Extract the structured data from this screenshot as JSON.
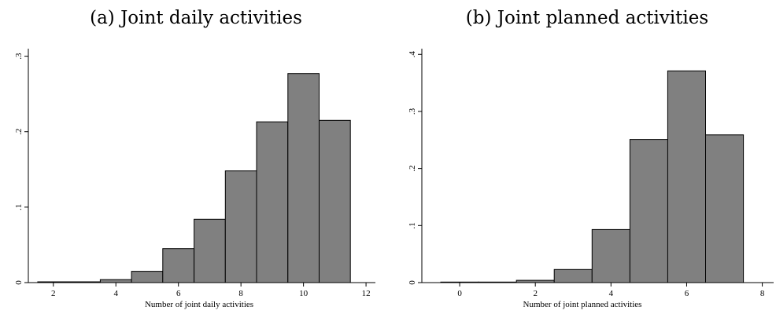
{
  "chart_data": [
    {
      "type": "bar",
      "title": "(a) Joint daily activities",
      "xlabel": "Number of joint daily activities",
      "ylabel": "",
      "xlim": [
        1.2,
        12.3
      ],
      "ylim": [
        0,
        0.31
      ],
      "xticks": [
        "2",
        "4",
        "6",
        "8",
        "10",
        "12"
      ],
      "yticks": [
        "0",
        ".1",
        ".2",
        ".3"
      ],
      "bin_width": 1,
      "bins": [
        2,
        3,
        4,
        5,
        6,
        7,
        8,
        9,
        10,
        11
      ],
      "values": [
        0.001,
        0.001,
        0.004,
        0.015,
        0.045,
        0.084,
        0.148,
        0.213,
        0.277,
        0.215
      ]
    },
    {
      "type": "bar",
      "title": "(b) Joint planned activities",
      "xlabel": "Number of joint planned activities",
      "ylabel": "",
      "xlim": [
        -1.0,
        8.3
      ],
      "ylim": [
        0,
        0.41
      ],
      "xticks": [
        "0",
        "2",
        "4",
        "6",
        "8"
      ],
      "yticks": [
        "0",
        ".1",
        ".2",
        ".3",
        ".4"
      ],
      "bin_width": 1,
      "bins": [
        0,
        1,
        2,
        3,
        4,
        5,
        6,
        7
      ],
      "values": [
        0.001,
        0.001,
        0.004,
        0.023,
        0.093,
        0.251,
        0.371,
        0.259
      ]
    }
  ]
}
